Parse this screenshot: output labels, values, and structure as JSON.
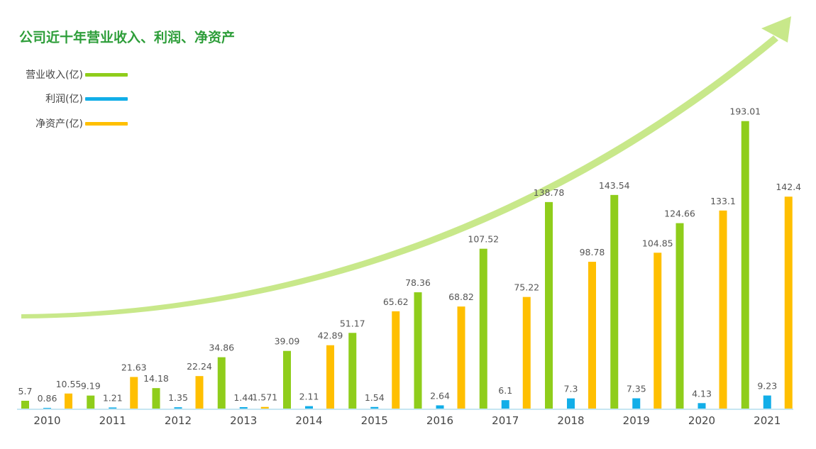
{
  "title": "公司近十年营业收入、利润、净资产",
  "legend": [
    {
      "label": "营业收入(亿)",
      "color": "#8fcd1b"
    },
    {
      "label": "利润(亿)",
      "color": "#12aee8"
    },
    {
      "label": "净资产(亿)",
      "color": "#ffbf00"
    }
  ],
  "colors": {
    "arrow": "#c8e88a",
    "axis": "#c6e6f2"
  },
  "chart_data": {
    "type": "bar",
    "categories": [
      "2010",
      "2011",
      "2012",
      "2013",
      "2014",
      "2015",
      "2016",
      "2017",
      "2018",
      "2019",
      "2020",
      "2021"
    ],
    "series": [
      {
        "name": "营业收入(亿)",
        "values": [
          5.7,
          9.19,
          14.18,
          34.86,
          39.09,
          51.17,
          78.36,
          107.52,
          138.78,
          143.54,
          124.66,
          193.01
        ],
        "labels": [
          "5.7",
          "9.19",
          "14.18",
          "34.86",
          "39.09",
          "51.17",
          "78.36",
          "107.52",
          "138.78",
          "143.54",
          "124.66",
          "193.01"
        ]
      },
      {
        "name": "利润(亿)",
        "values": [
          0.86,
          1.21,
          1.35,
          1.44,
          2.11,
          1.54,
          2.64,
          6.1,
          7.3,
          7.35,
          4.13,
          9.23
        ],
        "labels": [
          "0.86",
          "1.21",
          "1.35",
          "1.44",
          "2.11",
          "1.54",
          "2.64",
          "6.1",
          "7.3",
          "7.35",
          "4.13",
          "9.23"
        ]
      },
      {
        "name": "净资产(亿)",
        "values": [
          10.55,
          21.63,
          22.24,
          1.571,
          42.89,
          65.62,
          68.82,
          75.22,
          98.78,
          104.85,
          133.1,
          142.4
        ],
        "labels": [
          "10.55",
          "21.63",
          "22.24",
          "1.571",
          "42.89",
          "65.62",
          "68.82",
          "75.22",
          "98.78",
          "104.85",
          "133.1",
          "142.4"
        ]
      }
    ],
    "grid": false,
    "legend_position": "top-left"
  }
}
